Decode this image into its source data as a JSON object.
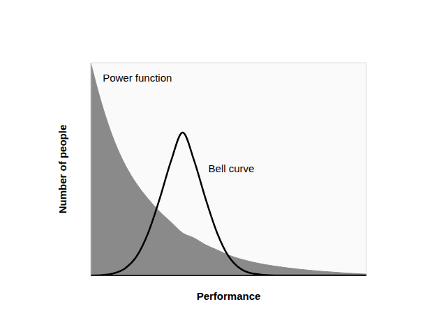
{
  "chart_data": {
    "type": "area",
    "x_label": "Performance",
    "y_label": "Number of people",
    "x": [
      0,
      0.25,
      0.5,
      0.75,
      1,
      1.25,
      1.5,
      1.75,
      2,
      2.25,
      2.5,
      2.75,
      3,
      3.5,
      4,
      4.5,
      5,
      5.5,
      6
    ],
    "series": [
      {
        "type": "area",
        "color": "#8a8a8a",
        "values": [
          5,
          4.0,
          3.2,
          2.6,
          2.15,
          1.8,
          1.5,
          1.25,
          1.0,
          0.88,
          0.72,
          0.6,
          0.48,
          0.32,
          0.22,
          0.15,
          0.1,
          0.06,
          0.03
        ]
      },
      {
        "type": "line",
        "color": "#000000",
        "values": [
          0,
          0.01,
          0.05,
          0.17,
          0.45,
          1.0,
          1.8,
          2.7,
          3.36,
          2.7,
          1.8,
          1.0,
          0.45,
          0.05,
          0,
          0,
          0,
          0,
          0
        ]
      }
    ],
    "annotations": [
      {
        "text": "Power function",
        "x": 0.2,
        "y": 4.64
      },
      {
        "text": "Bell curve",
        "x": 2.5,
        "y": 2.52
      }
    ],
    "xlim": [
      0,
      6
    ],
    "ylim": [
      0,
      5
    ],
    "xticks": [
      0,
      1,
      2,
      3,
      4,
      5,
      6
    ],
    "yticks": [
      0,
      1,
      2,
      3,
      4,
      5
    ],
    "grid": true,
    "tick_labels": false
  }
}
